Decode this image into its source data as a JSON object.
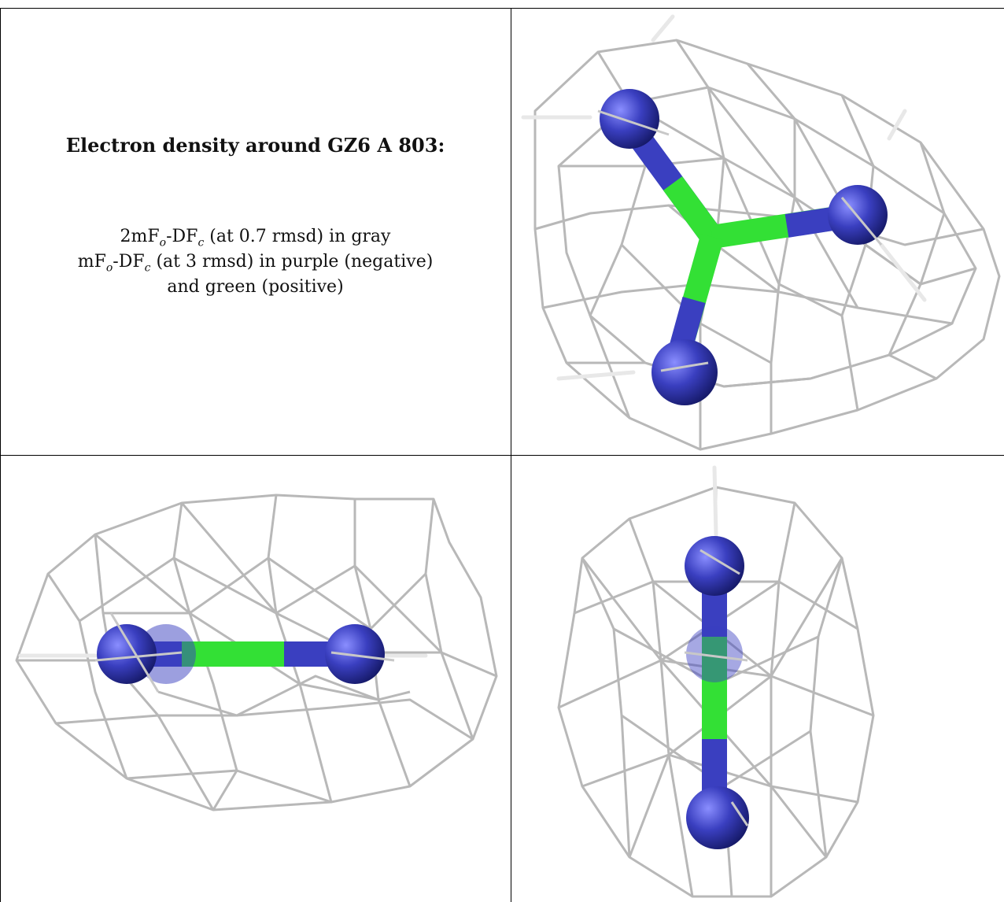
{
  "caption": {
    "title": "Electron density around GZ6 A 803:",
    "line1": {
      "prefix": "2mF",
      "sub1": "o",
      "mid": "-DF",
      "sub2": "c",
      "suffix": " (at 0.7 rmsd) in gray"
    },
    "line2": {
      "prefix": "mF",
      "sub1": "o",
      "mid": "-DF",
      "sub2": "c",
      "suffix": " (at 3 rmsd) in purple (negative)"
    },
    "line3": "and green (positive)"
  },
  "colors": {
    "mesh": "#b8b8b8",
    "nitrogen": "#3a3fc0",
    "carbon": "#33e035",
    "border": "#000000"
  },
  "panels": [
    {
      "view": "top-view",
      "icon": "guanidine-molecule-density-icon"
    },
    {
      "view": "side-view-horizontal",
      "icon": "guanidine-molecule-density-icon"
    },
    {
      "view": "side-view-vertical",
      "icon": "guanidine-molecule-density-icon"
    }
  ]
}
